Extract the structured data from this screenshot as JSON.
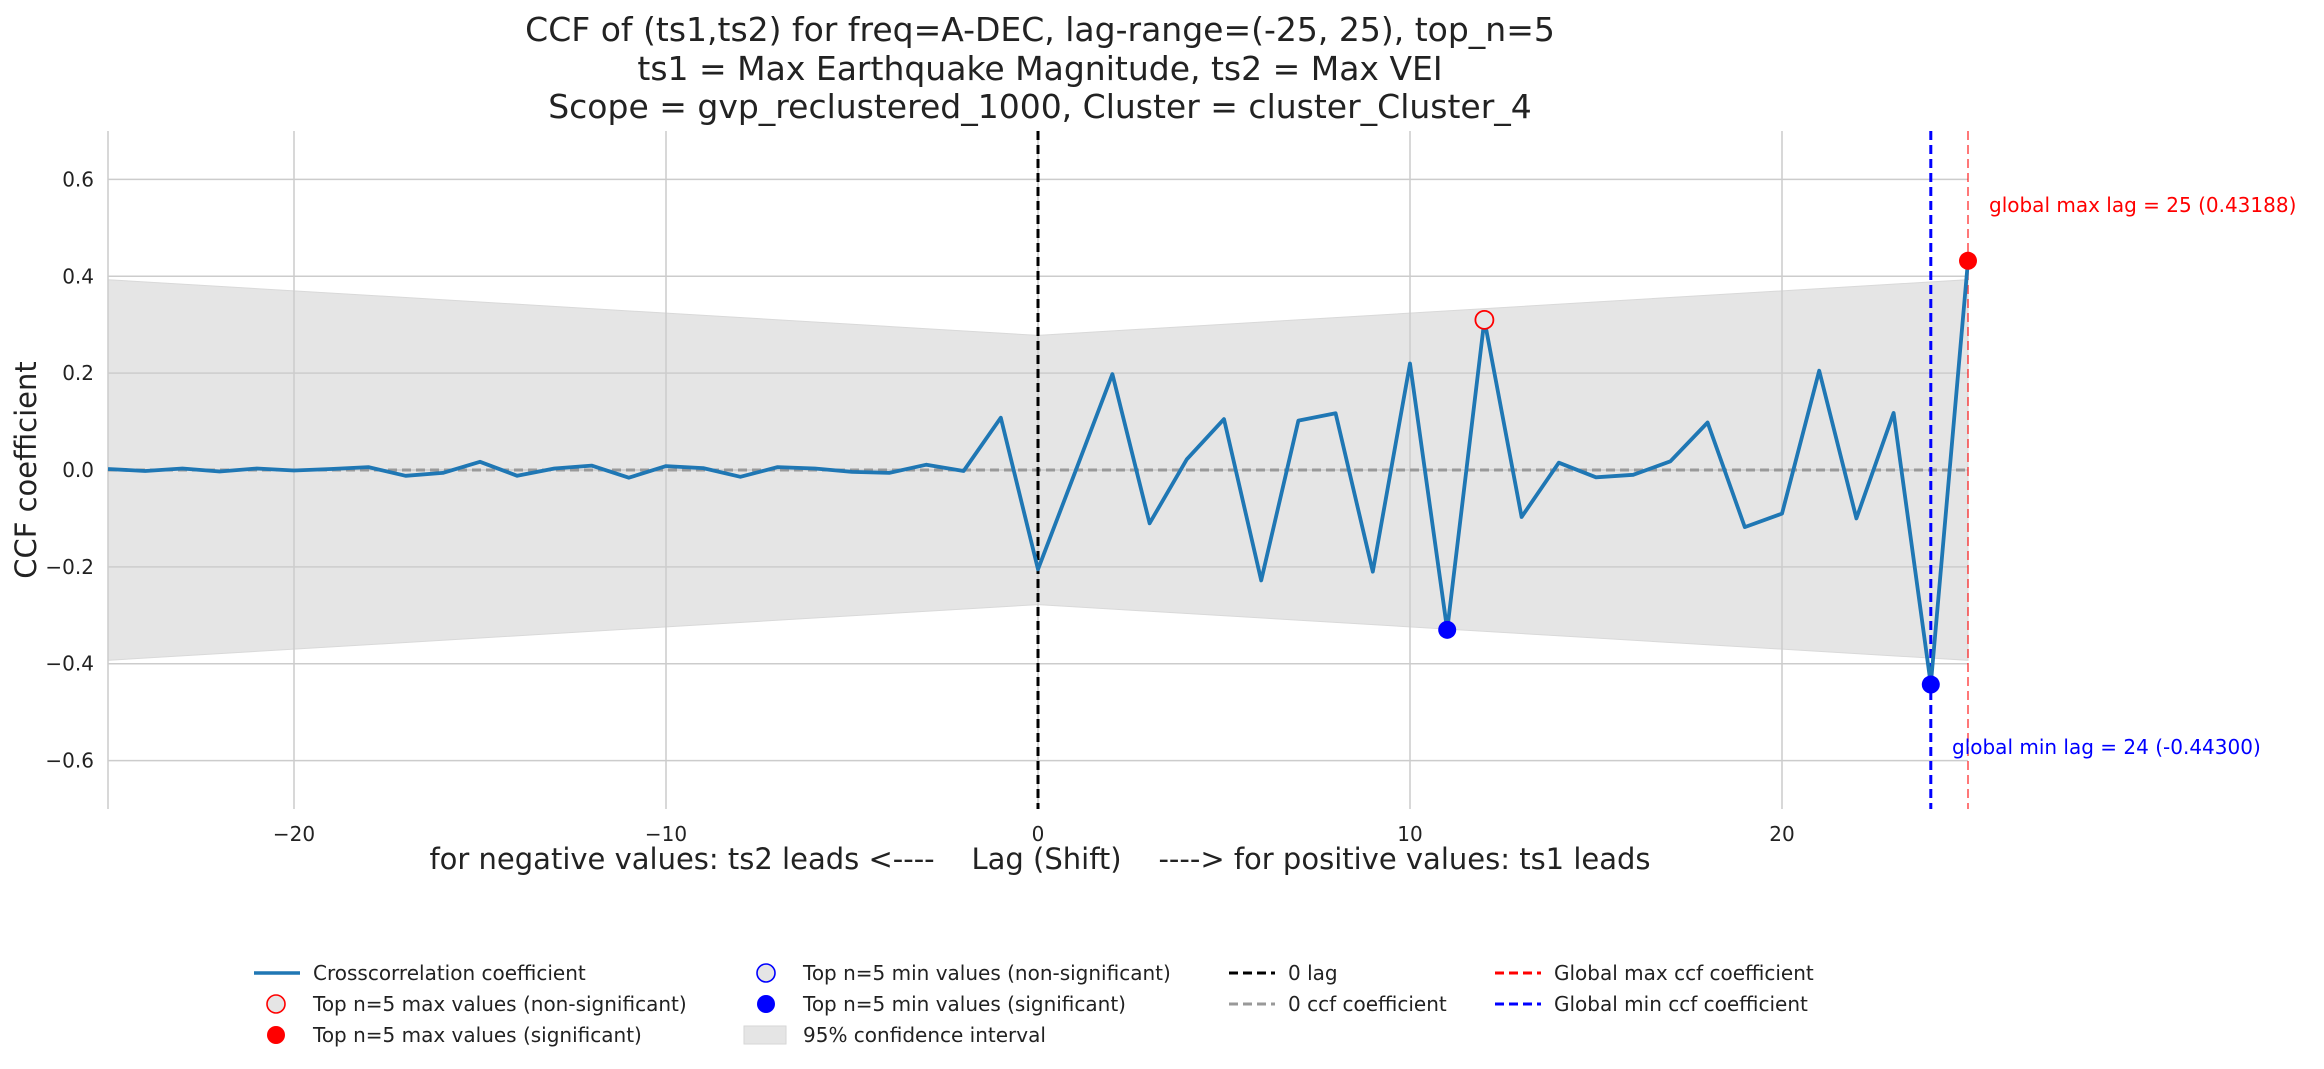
{
  "chart_data": {
    "type": "line",
    "title": [
      "CCF of (ts1,ts2) for freq=A-DEC, lag-range=(-25, 25), top_n=5",
      "ts1 = Max Earthquake Magnitude, ts2 = Max VEI",
      "Scope = gvp_reclustered_1000, Cluster = cluster_Cluster_4"
    ],
    "xlabel": "for negative values: ts2 leads <----    Lag (Shift)    ----> for positive values: ts1 leads",
    "ylabel": "CCF coefficient",
    "xlim": [
      -25,
      25
    ],
    "ylim": [
      -0.7,
      0.7
    ],
    "xticks": [
      -20,
      -10,
      0,
      10,
      20
    ],
    "xtick_labels": [
      "−20",
      "−10",
      "0",
      "10",
      "20"
    ],
    "yticks": [
      -0.6,
      -0.4,
      -0.2,
      0.0,
      0.2,
      0.4,
      0.6
    ],
    "ytick_labels": [
      "−0.6",
      "−0.4",
      "−0.2",
      "0.0",
      "0.2",
      "0.4",
      "0.6"
    ],
    "grid": true,
    "legend_position": "bottom",
    "series": [
      {
        "name": "Crosscorrelation coefficient",
        "color": "#1f77b4",
        "x": [
          -25,
          -24,
          -23,
          -22,
          -21,
          -20,
          -19,
          -18,
          -17,
          -16,
          -15,
          -14,
          -13,
          -12,
          -11,
          -10,
          -9,
          -8,
          -7,
          -6,
          -5,
          -4,
          -3,
          -2,
          -1,
          0,
          1,
          2,
          3,
          4,
          5,
          6,
          7,
          8,
          9,
          10,
          11,
          12,
          13,
          14,
          15,
          16,
          17,
          18,
          19,
          20,
          21,
          22,
          23,
          24,
          25
        ],
        "values": [
          0.002,
          -0.002,
          0.003,
          -0.003,
          0.003,
          -0.001,
          0.002,
          0.006,
          -0.012,
          -0.006,
          0.017,
          -0.012,
          0.003,
          0.009,
          -0.016,
          0.008,
          0.004,
          -0.014,
          0.006,
          0.003,
          -0.004,
          -0.006,
          0.011,
          -0.002,
          0.108,
          -0.205,
          -0.004,
          0.198,
          -0.11,
          0.022,
          0.105,
          -0.228,
          0.102,
          0.117,
          -0.21,
          0.22,
          -0.33,
          0.31,
          -0.097,
          0.015,
          -0.015,
          -0.01,
          0.018,
          0.098,
          -0.118,
          -0.09,
          0.205,
          -0.1,
          0.118,
          -0.443,
          0.432
        ]
      }
    ],
    "confidence_interval": {
      "name": "95% confidence interval",
      "x": [
        -25,
        0,
        25
      ],
      "upper": [
        0.393,
        0.278,
        0.393
      ],
      "lower": [
        -0.393,
        -0.278,
        -0.393
      ]
    },
    "top_max_nonsignificant": [
      {
        "x": 12,
        "y": 0.31
      }
    ],
    "top_max_significant": [
      {
        "x": 25,
        "y": 0.432
      }
    ],
    "top_min_significant": [
      {
        "x": 11,
        "y": -0.33
      },
      {
        "x": 24,
        "y": -0.443
      }
    ],
    "global_max_lag": 25,
    "global_min_lag": 24,
    "annotations": {
      "global_max": "global max lag = 25 (0.43188)",
      "global_min": "global min lag = 24 (-0.44300)"
    },
    "colors": {
      "line": "#1f77b4",
      "max": "#ff0000",
      "min": "#0000ff",
      "zero_lag": "#000000",
      "zero_ccf": "#999999",
      "band": "#e5e5e5",
      "grid": "#cccccc"
    },
    "legend": [
      "Crosscorrelation coefficient",
      "Top n=5 max values (non-significant)",
      "Top n=5 max values (significant)",
      "Top n=5 min values (non-significant)",
      "Top n=5 min values (significant)",
      "95% confidence interval",
      "0 lag",
      "0 ccf coefficient",
      "Global max ccf coefficient",
      "Global min ccf coefficient"
    ]
  }
}
